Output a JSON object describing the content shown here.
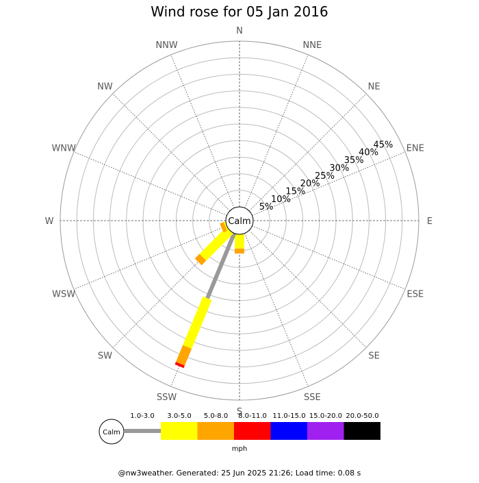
{
  "chart_data": {
    "type": "wind-rose",
    "title": "Wind rose for 05 Jan 2016",
    "calm_label": "Calm",
    "directions": [
      "N",
      "NNE",
      "NE",
      "ENE",
      "E",
      "ESE",
      "SE",
      "SSE",
      "S",
      "SSW",
      "SW",
      "WSW",
      "W",
      "WNW",
      "NW",
      "NNW"
    ],
    "radial_ticks": [
      5,
      10,
      15,
      20,
      25,
      30,
      35,
      40,
      45
    ],
    "radial_tick_labels": [
      "5%",
      "10%",
      "15%",
      "20%",
      "25%",
      "30%",
      "35%",
      "40%",
      "45%"
    ],
    "rmax": 50,
    "unit": "mph",
    "speed_bins": [
      "1.0-3.0",
      "3.0-5.0",
      "5.0-8.0",
      "8.0-11.0",
      "11.0-15.0",
      "15.0-20.0",
      "20.0-50.0"
    ],
    "bin_colors": [
      "#999999",
      "#ffff00",
      "#ffa500",
      "#ff0000",
      "#0000ff",
      "#a020f0",
      "#000000"
    ],
    "series": [
      {
        "direction": "S",
        "values": [
          0,
          4.3,
          1.5,
          0,
          0,
          0,
          0
        ]
      },
      {
        "direction": "SSW",
        "values": [
          21.2,
          15.9,
          5.5,
          0.8,
          0,
          0,
          0
        ]
      },
      {
        "direction": "SW",
        "values": [
          0,
          11.5,
          2.0,
          0,
          0,
          0,
          0
        ]
      },
      {
        "direction": "WSW",
        "values": [
          0,
          0.5,
          1.2,
          0,
          0,
          0,
          0
        ]
      }
    ]
  },
  "footer": "@nw3weather. Generated: 25 Jun 2025 21:26; Load time: 0.08 s"
}
